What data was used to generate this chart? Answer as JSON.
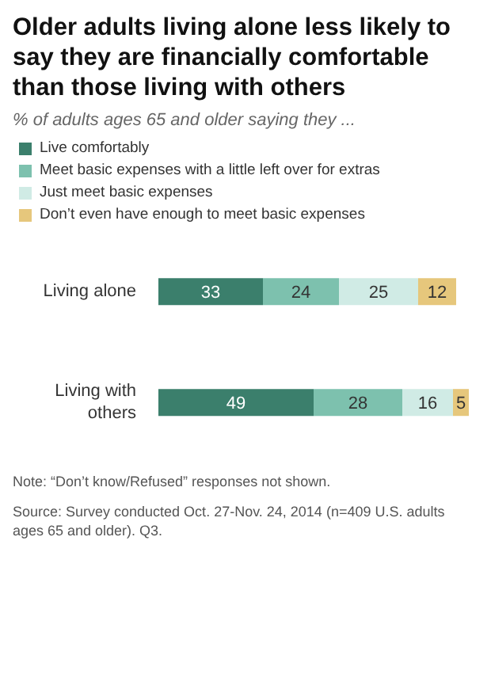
{
  "chart_data": {
    "type": "bar",
    "orientation": "horizontal",
    "stacked": true,
    "title": "Older adults living alone less likely to say they are financially comfortable than those living with others",
    "subtitle": "% of adults ages 65 and older saying they ...",
    "categories": [
      "Living alone",
      "Living with others"
    ],
    "series": [
      {
        "name": "Live comfortably",
        "color": "#3b7f6c",
        "values": [
          33,
          49
        ]
      },
      {
        "name": "Meet basic expenses with a little left over for extras",
        "color": "#7dc1ae",
        "values": [
          24,
          28
        ]
      },
      {
        "name": "Just meet basic expenses",
        "color": "#d0ebe5",
        "values": [
          25,
          16
        ]
      },
      {
        "name": "Don’t even have enough to meet basic expenses",
        "color": "#e6c77c",
        "values": [
          12,
          5
        ]
      }
    ],
    "data_labels": true,
    "legend": "top left",
    "grid": false,
    "annotations": [
      "Note: “Don’t know/Refused” responses not shown.",
      "Source: Survey conducted Oct. 27-Nov. 24, 2014 (n=409 U.S. adults ages 65 and older). Q3."
    ]
  }
}
